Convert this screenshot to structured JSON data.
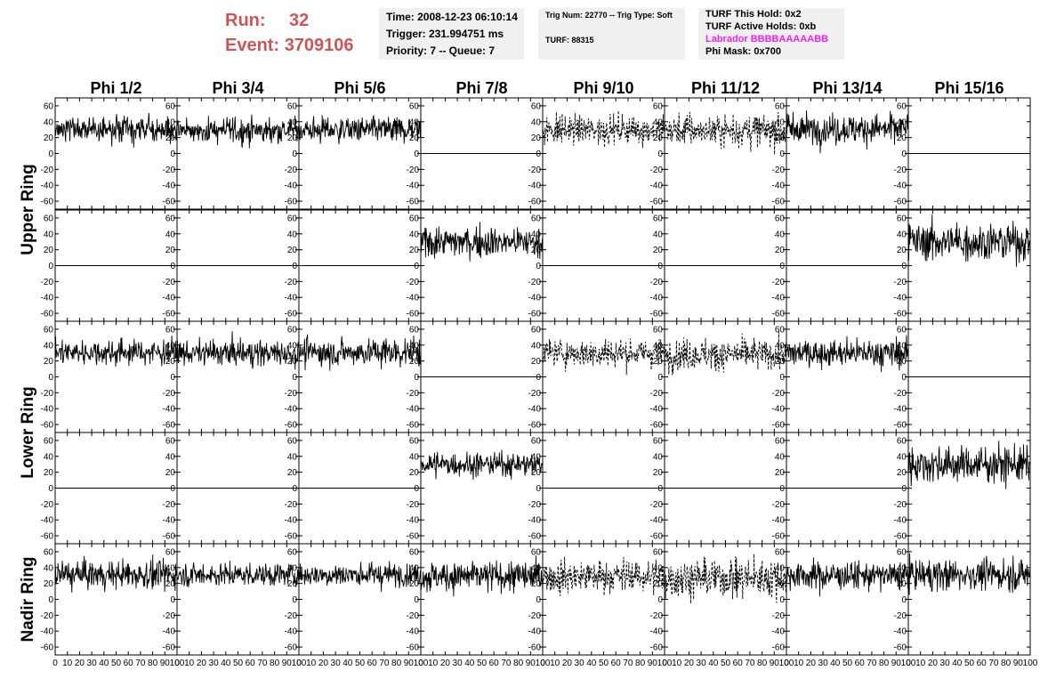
{
  "header": {
    "run_label": "Run:",
    "run_value": "32",
    "event_label": "Event:",
    "event_value": "3709106",
    "time_text": "Time: 2008-12-23 06:10:14",
    "trigger_text": "Trigger: 231.994751 ms",
    "priority_text": "Priority: 7 -- Queue: 7",
    "trig_num_text": "Trig Num: 22770 -- Trig Type: Soft",
    "turf_text": "TURF: 88315",
    "turf_this_hold_text": "TURF This Hold: 0x2",
    "turf_active_holds_text": "TURF Active Holds: 0xb",
    "labrador_text": "Labrador BBBBAAAAABB",
    "phi_mask_text": "Phi Mask: 0x700",
    "labrador_color": "#ee22ee",
    "run_color": "#cc5555"
  },
  "chart_data": {
    "type": "line",
    "columns": [
      "Phi 1/2",
      "Phi 3/4",
      "Phi 5/6",
      "Phi 7/8",
      "Phi 9/10",
      "Phi 11/12",
      "Phi 13/14",
      "Phi 15/16"
    ],
    "rings": [
      "Upper Ring",
      "Lower Ring",
      "Nadir Ring"
    ],
    "ylim": [
      -70,
      70
    ],
    "yticks": [
      -60,
      -40,
      -20,
      0,
      20,
      40,
      60
    ],
    "xlim": [
      0,
      100
    ],
    "xticks": [
      0,
      10,
      20,
      30,
      40,
      50,
      60,
      70,
      80,
      90,
      100
    ],
    "xlabel": "",
    "ylabel": "",
    "rows": [
      {
        "ring": "Upper Ring",
        "panels": [
          {
            "mode": "noise",
            "mean": 30,
            "sd": 10,
            "dashed": false
          },
          {
            "mode": "noise",
            "mean": 29,
            "sd": 10,
            "dashed": false
          },
          {
            "mode": "noise",
            "mean": 30,
            "sd": 10,
            "dashed": false
          },
          {
            "mode": "flat",
            "mean": 0,
            "sd": 0,
            "dashed": false
          },
          {
            "mode": "noise",
            "mean": 30,
            "sd": 11,
            "dashed": true
          },
          {
            "mode": "noise",
            "mean": 29,
            "sd": 13,
            "dashed": true
          },
          {
            "mode": "noise",
            "mean": 31,
            "sd": 12,
            "dashed": false
          },
          {
            "mode": "flat",
            "mean": 0,
            "sd": 0,
            "dashed": false
          }
        ]
      },
      {
        "ring": "Upper Ring",
        "panels": [
          {
            "mode": "flat",
            "mean": 0,
            "sd": 0,
            "dashed": false
          },
          {
            "mode": "flat",
            "mean": 0,
            "sd": 0,
            "dashed": false
          },
          {
            "mode": "flat",
            "mean": 0,
            "sd": 0,
            "dashed": false
          },
          {
            "mode": "noise",
            "mean": 30,
            "sd": 12,
            "dashed": false
          },
          {
            "mode": "flat",
            "mean": 0,
            "sd": 0,
            "dashed": false
          },
          {
            "mode": "flat",
            "mean": 0,
            "sd": 0,
            "dashed": false
          },
          {
            "mode": "flat",
            "mean": 0,
            "sd": 0,
            "dashed": false
          },
          {
            "mode": "noise",
            "mean": 30,
            "sd": 15,
            "dashed": false
          }
        ]
      },
      {
        "ring": "Lower Ring",
        "panels": [
          {
            "mode": "noise",
            "mean": 31,
            "sd": 10,
            "dashed": false
          },
          {
            "mode": "noise",
            "mean": 30,
            "sd": 10,
            "dashed": false
          },
          {
            "mode": "noise",
            "mean": 31,
            "sd": 11,
            "dashed": false
          },
          {
            "mode": "flat",
            "mean": 0,
            "sd": 0,
            "dashed": false
          },
          {
            "mode": "noise",
            "mean": 30,
            "sd": 11,
            "dashed": true
          },
          {
            "mode": "noise",
            "mean": 28,
            "sd": 12,
            "dashed": true
          },
          {
            "mode": "noise",
            "mean": 30,
            "sd": 11,
            "dashed": false
          },
          {
            "mode": "flat",
            "mean": 0,
            "sd": 0,
            "dashed": false
          }
        ]
      },
      {
        "ring": "Lower Ring",
        "panels": [
          {
            "mode": "flat",
            "mean": 0,
            "sd": 0,
            "dashed": false
          },
          {
            "mode": "flat",
            "mean": 0,
            "sd": 0,
            "dashed": false
          },
          {
            "mode": "flat",
            "mean": 0,
            "sd": 0,
            "dashed": false
          },
          {
            "mode": "noise",
            "mean": 30,
            "sd": 9,
            "dashed": false
          },
          {
            "mode": "flat",
            "mean": 0,
            "sd": 0,
            "dashed": false
          },
          {
            "mode": "flat",
            "mean": 0,
            "sd": 0,
            "dashed": false
          },
          {
            "mode": "flat",
            "mean": 0,
            "sd": 0,
            "dashed": false
          },
          {
            "mode": "noise",
            "mean": 30,
            "sd": 14,
            "dashed": false
          }
        ]
      },
      {
        "ring": "Nadir Ring",
        "panels": [
          {
            "mode": "noise",
            "mean": 31,
            "sd": 11,
            "dashed": false
          },
          {
            "mode": "noise",
            "mean": 31,
            "sd": 9,
            "dashed": false
          },
          {
            "mode": "noise",
            "mean": 31,
            "sd": 9,
            "dashed": false
          },
          {
            "mode": "noise",
            "mean": 29,
            "sd": 12,
            "dashed": false
          },
          {
            "mode": "noise",
            "mean": 29,
            "sd": 13,
            "dashed": true
          },
          {
            "mode": "noise",
            "mean": 27,
            "sd": 15,
            "dashed": true
          },
          {
            "mode": "noise",
            "mean": 30,
            "sd": 11,
            "dashed": false
          },
          {
            "mode": "noise",
            "mean": 31,
            "sd": 12,
            "dashed": false
          }
        ]
      }
    ]
  }
}
